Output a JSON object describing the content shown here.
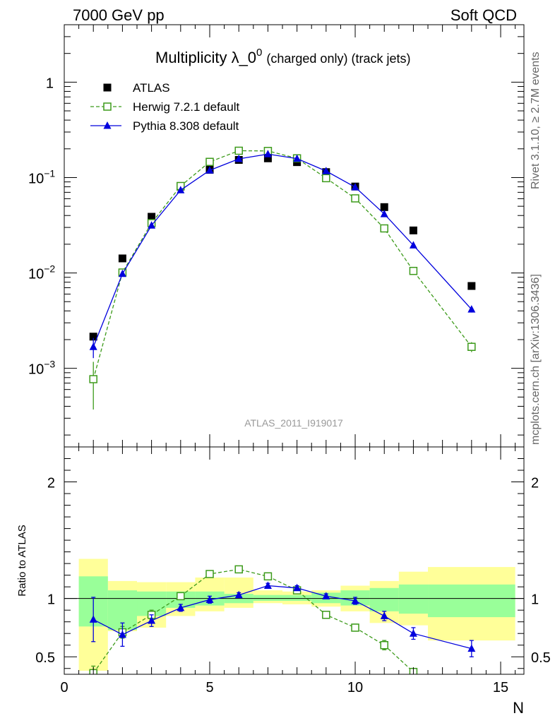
{
  "header": {
    "left": "7000 GeV pp",
    "right": "Soft QCD"
  },
  "side_labels": {
    "upper": "Rivet 3.1.10, ≥ 2.7M events",
    "lower": "mcplots.cern.ch [arXiv:1306.3436]"
  },
  "chart_data": [
    {
      "panel": "main",
      "type": "scatter",
      "title": "Multiplicity λ_0",
      "title_sup": "0",
      "title_suffix": "(charged only) (track jets)",
      "analysis_id": "ATLAS_2011_I919017",
      "xlabel": "N",
      "ylabel": "",
      "xlim": [
        0,
        15.8
      ],
      "ylim": [
        0.00015,
        4
      ],
      "yscale": "log",
      "y_tick_labels": [
        {
          "value": 0.001,
          "base": "10",
          "exp": "−3"
        },
        {
          "value": 0.01,
          "base": "10",
          "exp": "−2"
        },
        {
          "value": 0.1,
          "base": "10",
          "exp": "−1"
        },
        {
          "value": 1,
          "base": "1",
          "exp": ""
        }
      ],
      "legend_position": "top-left",
      "series": [
        {
          "name": "ATLAS",
          "style": "data",
          "color": "#000000",
          "marker": "filled-square",
          "x": [
            1,
            2,
            3,
            4,
            5,
            6,
            7,
            8,
            9,
            10,
            11,
            12,
            14
          ],
          "y": [
            0.00215,
            0.0142,
            0.0388,
            0.0805,
            0.1205,
            0.153,
            0.159,
            0.145,
            0.114,
            0.0805,
            0.049,
            0.0279,
            0.0073
          ]
        },
        {
          "name": "Herwig 7.2.1 default",
          "style": "mc",
          "color": "#3c9a1a",
          "marker": "open-square",
          "line": "dashed",
          "x": [
            1,
            2,
            3,
            4,
            5,
            6,
            7,
            8,
            9,
            10,
            11,
            12,
            14
          ],
          "y": [
            0.00077,
            0.0101,
            0.0333,
            0.0815,
            0.146,
            0.191,
            0.19,
            0.159,
            0.0985,
            0.0605,
            0.0293,
            0.0105,
            0.00168
          ],
          "yerr": [
            0.0004,
            0.0004,
            0.001,
            0.001,
            0.002,
            0.002,
            0.002,
            0.002,
            0.002,
            0.001,
            0.001,
            0.0007,
            0.0002
          ]
        },
        {
          "name": "Pythia 8.308 default",
          "style": "mc",
          "color": "#0000dd",
          "marker": "filled-triangle",
          "line": "solid",
          "x": [
            1,
            2,
            3,
            4,
            5,
            6,
            7,
            8,
            9,
            10,
            11,
            12,
            14
          ],
          "y": [
            0.00168,
            0.0098,
            0.0315,
            0.0738,
            0.119,
            0.157,
            0.176,
            0.158,
            0.117,
            0.0793,
            0.0415,
            0.0195,
            0.00415
          ],
          "yerr": [
            0.0004,
            0.0003,
            0.0008,
            0.001,
            0.002,
            0.002,
            0.002,
            0.002,
            0.002,
            0.001,
            0.001,
            0.0006,
            0.0003
          ]
        }
      ]
    },
    {
      "panel": "ratio",
      "type": "line",
      "ylabel": "Ratio to ATLAS",
      "xlabel": "N",
      "xlim": [
        0,
        15.8
      ],
      "ylim": [
        0.35,
        2.3
      ],
      "y_ticks": [
        0.5,
        1,
        2
      ],
      "y_tick_labels": [
        "0.5",
        "1",
        "2"
      ],
      "x_ticks": [
        0,
        5,
        10,
        15
      ],
      "x_tick_labels": [
        "0",
        "5",
        "10",
        "15"
      ],
      "reference_line": 1,
      "bands": {
        "inner_color": "#99ff99",
        "outer_color": "#ffff99",
        "bins": [
          {
            "x0": 0.5,
            "x1": 1.5,
            "inner": [
              0.76,
              1.19
            ],
            "outer": [
              0.38,
              1.34
            ]
          },
          {
            "x0": 1.5,
            "x1": 2.5,
            "inner": [
              0.73,
              1.07
            ],
            "outer": [
              0.72,
              1.15
            ]
          },
          {
            "x0": 2.5,
            "x1": 3.5,
            "inner": [
              0.85,
              1.06
            ],
            "outer": [
              0.75,
              1.14
            ]
          },
          {
            "x0": 3.5,
            "x1": 4.5,
            "inner": [
              0.92,
              1.06
            ],
            "outer": [
              0.85,
              1.14
            ]
          },
          {
            "x0": 4.5,
            "x1": 5.5,
            "inner": [
              0.94,
              1.06
            ],
            "outer": [
              0.89,
              1.18
            ]
          },
          {
            "x0": 5.5,
            "x1": 6.5,
            "inner": [
              0.96,
              1.04
            ],
            "outer": [
              0.92,
              1.18
            ]
          },
          {
            "x0": 6.5,
            "x1": 7.5,
            "inner": [
              0.98,
              1.03
            ],
            "outer": [
              0.96,
              1.07
            ]
          },
          {
            "x0": 7.5,
            "x1": 8.5,
            "inner": [
              0.98,
              1.03
            ],
            "outer": [
              0.95,
              1.06
            ]
          },
          {
            "x0": 8.5,
            "x1": 9.5,
            "inner": [
              0.96,
              1.05
            ],
            "outer": [
              0.93,
              1.07
            ]
          },
          {
            "x0": 9.5,
            "x1": 10.5,
            "inner": [
              0.94,
              1.07
            ],
            "outer": [
              0.89,
              1.11
            ]
          },
          {
            "x0": 10.5,
            "x1": 11.5,
            "inner": [
              0.89,
              1.09
            ],
            "outer": [
              0.79,
              1.15
            ]
          },
          {
            "x0": 11.5,
            "x1": 12.5,
            "inner": [
              0.87,
              1.12
            ],
            "outer": [
              0.77,
              1.23
            ]
          },
          {
            "x0": 12.5,
            "x1": 15.5,
            "inner": [
              0.84,
              1.12
            ],
            "outer": [
              0.64,
              1.27
            ]
          }
        ]
      },
      "series": [
        {
          "name": "Herwig 7.2.1 default",
          "color": "#3c9a1a",
          "marker": "open-square",
          "line": "dashed",
          "x": [
            1,
            2,
            3,
            4,
            5,
            6,
            7,
            8,
            9,
            10,
            11,
            12
          ],
          "y": [
            0.36,
            0.71,
            0.86,
            1.02,
            1.21,
            1.25,
            1.19,
            1.07,
            0.86,
            0.75,
            0.6,
            0.37
          ],
          "yerr": [
            0.06,
            0.05,
            0.04,
            0.03,
            0.02,
            0.02,
            0.02,
            0.02,
            0.02,
            0.03,
            0.04,
            0.03
          ]
        },
        {
          "name": "Pythia 8.308 default",
          "color": "#0000dd",
          "marker": "filled-triangle",
          "line": "solid",
          "x": [
            1,
            2,
            3,
            4,
            5,
            6,
            7,
            8,
            9,
            10,
            11,
            12,
            14
          ],
          "y": [
            0.82,
            0.69,
            0.81,
            0.92,
            0.99,
            1.03,
            1.11,
            1.09,
            1.02,
            0.98,
            0.85,
            0.7,
            0.57
          ],
          "yerr": [
            0.19,
            0.1,
            0.05,
            0.03,
            0.03,
            0.02,
            0.02,
            0.02,
            0.02,
            0.03,
            0.04,
            0.05,
            0.07
          ]
        }
      ]
    }
  ]
}
